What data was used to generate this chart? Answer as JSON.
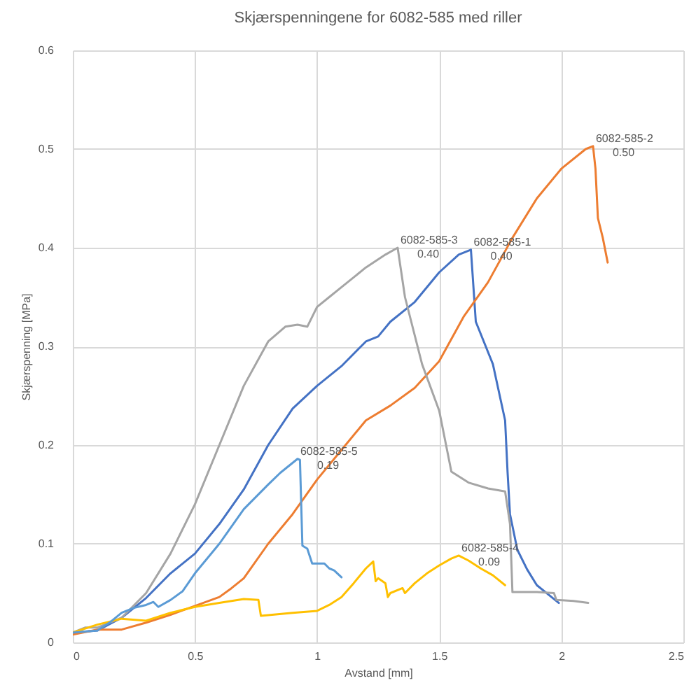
{
  "chart_data": {
    "type": "line",
    "title": "Skjærspenningene for 6082-585 med riller",
    "xlabel": "Avstand [mm]",
    "ylabel": "Skjærspenning [MPa]",
    "xlim": [
      0,
      2.5
    ],
    "xticks": [
      0,
      0.5,
      1,
      1.5,
      2,
      2.5
    ],
    "ylim": [
      0,
      0.6
    ],
    "yticks": [
      0,
      0.1,
      0.2,
      0.3,
      0.4,
      0.5,
      0.6
    ],
    "grid": true,
    "legend": false,
    "marker": "none",
    "line_style": "solid",
    "series": [
      {
        "name": "6082-585-1",
        "color": "#4472c4",
        "x": [
          0,
          0.1,
          0.2,
          0.3,
          0.4,
          0.5,
          0.6,
          0.7,
          0.8,
          0.9,
          1.0,
          1.1,
          1.2,
          1.25,
          1.3,
          1.4,
          1.5,
          1.58,
          1.63,
          1.65,
          1.72,
          1.77,
          1.78,
          1.79,
          1.82,
          1.86,
          1.9,
          1.95,
          1.99
        ],
        "values": [
          0.01,
          0.012,
          0.025,
          0.045,
          0.07,
          0.09,
          0.12,
          0.155,
          0.2,
          0.237,
          0.26,
          0.28,
          0.305,
          0.31,
          0.325,
          0.345,
          0.375,
          0.393,
          0.398,
          0.325,
          0.282,
          0.225,
          0.173,
          0.13,
          0.094,
          0.074,
          0.058,
          0.048,
          0.04
        ]
      },
      {
        "name": "6082-585-2",
        "color": "#ed7d31",
        "x": [
          0,
          0.1,
          0.2,
          0.3,
          0.4,
          0.5,
          0.6,
          0.65,
          0.7,
          0.8,
          0.9,
          1.0,
          1.1,
          1.2,
          1.3,
          1.4,
          1.5,
          1.6,
          1.7,
          1.8,
          1.9,
          2.0,
          2.1,
          2.13,
          2.14,
          2.15,
          2.17,
          2.19
        ],
        "values": [
          0.008,
          0.013,
          0.013,
          0.02,
          0.028,
          0.037,
          0.046,
          0.055,
          0.065,
          0.1,
          0.13,
          0.165,
          0.195,
          0.225,
          0.24,
          0.258,
          0.285,
          0.33,
          0.365,
          0.41,
          0.45,
          0.48,
          0.5,
          0.503,
          0.48,
          0.43,
          0.41,
          0.385
        ]
      },
      {
        "name": "6082-585-3",
        "color": "#a5a5a5",
        "x": [
          0,
          0.05,
          0.1,
          0.2,
          0.3,
          0.4,
          0.5,
          0.6,
          0.7,
          0.8,
          0.87,
          0.92,
          0.96,
          1.0,
          1.05,
          1.1,
          1.2,
          1.28,
          1.33,
          1.36,
          1.43,
          1.5,
          1.55,
          1.62,
          1.7,
          1.77,
          1.79,
          1.8,
          1.9,
          1.97,
          1.98,
          2.05,
          2.11
        ],
        "values": [
          0.01,
          0.015,
          0.015,
          0.025,
          0.05,
          0.09,
          0.14,
          0.2,
          0.26,
          0.305,
          0.32,
          0.322,
          0.32,
          0.34,
          0.35,
          0.36,
          0.38,
          0.393,
          0.4,
          0.35,
          0.282,
          0.235,
          0.173,
          0.162,
          0.156,
          0.153,
          0.12,
          0.051,
          0.051,
          0.05,
          0.043,
          0.042,
          0.04
        ]
      },
      {
        "name": "6082-585-4",
        "color": "#ffc000",
        "x": [
          0,
          0.1,
          0.2,
          0.3,
          0.4,
          0.5,
          0.6,
          0.7,
          0.76,
          0.77,
          0.9,
          1.0,
          1.05,
          1.1,
          1.15,
          1.2,
          1.23,
          1.24,
          1.25,
          1.28,
          1.29,
          1.3,
          1.35,
          1.36,
          1.4,
          1.45,
          1.5,
          1.55,
          1.58,
          1.62,
          1.67,
          1.72,
          1.77
        ],
        "values": [
          0.01,
          0.018,
          0.024,
          0.022,
          0.03,
          0.036,
          0.04,
          0.044,
          0.043,
          0.027,
          0.03,
          0.032,
          0.038,
          0.046,
          0.06,
          0.075,
          0.082,
          0.062,
          0.065,
          0.06,
          0.046,
          0.05,
          0.055,
          0.05,
          0.06,
          0.07,
          0.078,
          0.085,
          0.088,
          0.083,
          0.075,
          0.068,
          0.058
        ]
      },
      {
        "name": "6082-585-5",
        "color": "#5b9bd5",
        "x": [
          0,
          0.1,
          0.15,
          0.2,
          0.25,
          0.3,
          0.33,
          0.35,
          0.4,
          0.45,
          0.5,
          0.6,
          0.7,
          0.8,
          0.85,
          0.92,
          0.93,
          0.94,
          0.96,
          0.98,
          1.03,
          1.05,
          1.07,
          1.1
        ],
        "values": [
          0.01,
          0.012,
          0.02,
          0.03,
          0.035,
          0.038,
          0.041,
          0.036,
          0.043,
          0.052,
          0.07,
          0.1,
          0.135,
          0.16,
          0.172,
          0.186,
          0.185,
          0.098,
          0.095,
          0.08,
          0.08,
          0.075,
          0.073,
          0.066
        ]
      }
    ],
    "annotations": [
      {
        "text": "0.40",
        "x": 1.63,
        "y": 0.398
      },
      {
        "text": "0.50",
        "x": 2.13,
        "y": 0.503
      },
      {
        "text": "0.40",
        "x": 1.33,
        "y": 0.4
      },
      {
        "text": "0.09",
        "x": 1.58,
        "y": 0.088
      },
      {
        "text": "0.19",
        "x": 0.92,
        "y": 0.186
      }
    ]
  }
}
